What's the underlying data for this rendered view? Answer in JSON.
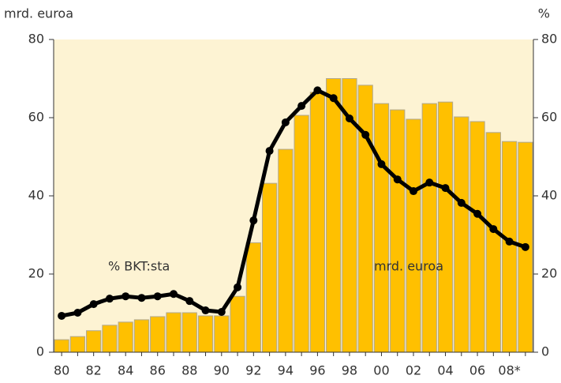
{
  "chart_data": {
    "type": "bar_line",
    "y_axis_label": "mrd. euroa",
    "y2_axis_label": "%",
    "categories": [
      "80",
      null,
      "82",
      null,
      "84",
      null,
      "86",
      null,
      "88",
      null,
      "90",
      null,
      "92",
      null,
      "94",
      null,
      "96",
      null,
      "98",
      null,
      "00",
      null,
      "02",
      null,
      "04",
      null,
      "06",
      null,
      "08*",
      null
    ],
    "series": [
      {
        "name": "mrd. euroa",
        "type": "bar",
        "color": "#ffc000",
        "values": [
          3.2,
          4,
          5.5,
          6.9,
          7.7,
          8.3,
          9.1,
          10.1,
          10.1,
          9.3,
          9.3,
          14.3,
          28,
          43.2,
          51.9,
          60.6,
          66.5,
          70,
          70,
          68.3,
          63.6,
          62,
          59.6,
          63.6,
          64,
          60.2,
          59,
          56.2,
          53.9,
          53.7
        ]
      },
      {
        "name": "% BKT:sta",
        "type": "line",
        "axis": "y2",
        "color": "#000000",
        "values": [
          9.3,
          10.1,
          12.3,
          13.7,
          14.3,
          13.9,
          14.3,
          14.9,
          13.1,
          10.7,
          10.3,
          16.6,
          33.7,
          51.5,
          58.8,
          63,
          67,
          65,
          59.8,
          55.6,
          48.1,
          44.2,
          41.2,
          43.4,
          42,
          38.2,
          35.4,
          31.5,
          28.3,
          26.9
        ]
      }
    ],
    "ylim": [
      0,
      80
    ],
    "yticks": [
      0,
      20,
      40,
      60,
      80
    ],
    "y2lim": [
      0,
      80
    ],
    "y2ticks": [
      0,
      20,
      40,
      60,
      80
    ],
    "plot_background": "#fdf3d3"
  }
}
